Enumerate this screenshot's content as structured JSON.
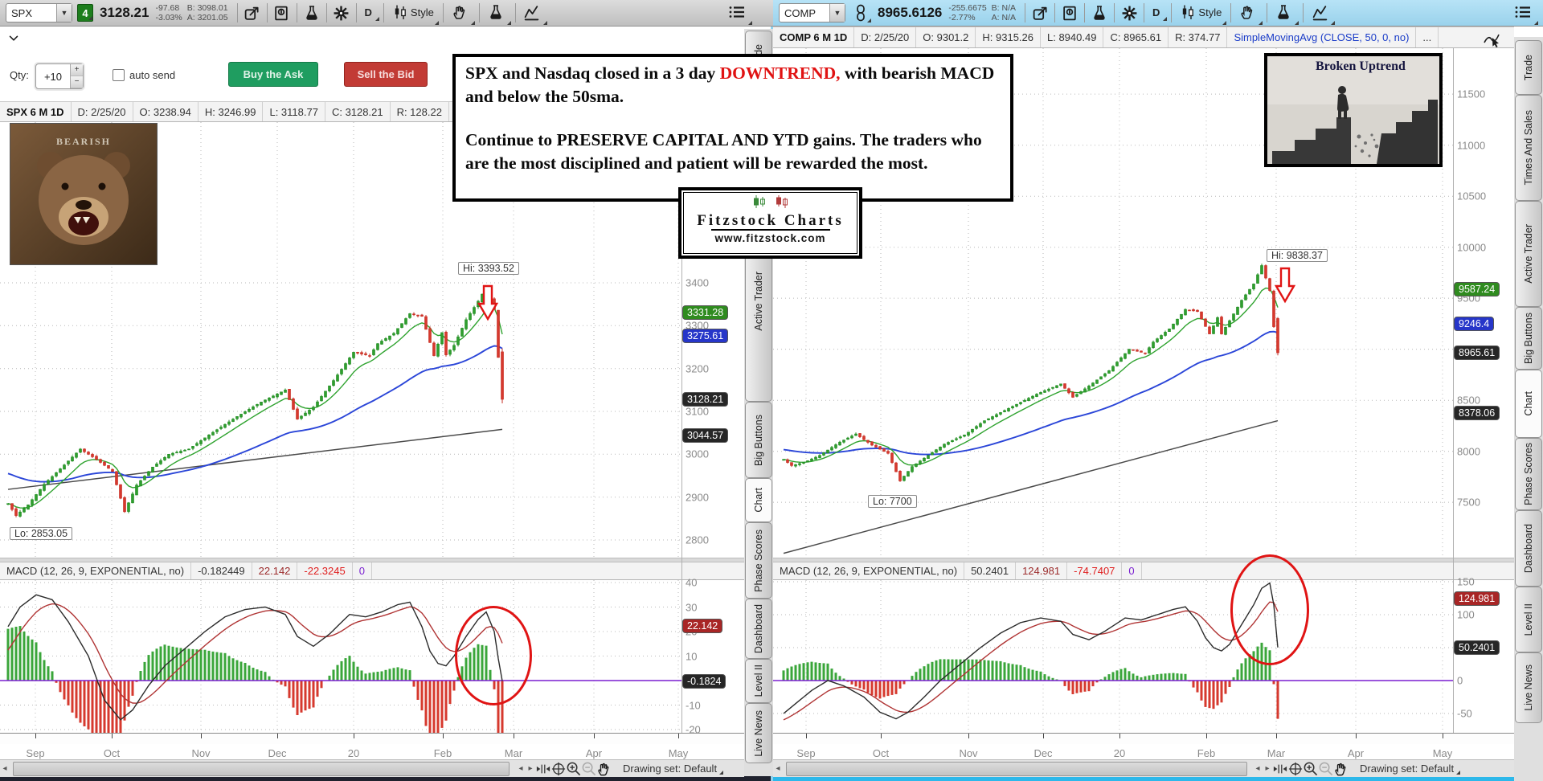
{
  "left_panel": {
    "toolbar": {
      "symbol": "SPX",
      "link_badge": "4",
      "last": "3128.21",
      "change": "-97.68",
      "change_pct": "-3.03%",
      "bid": "B: 3098.01",
      "ask": "A: 3201.05",
      "timeframe": "D",
      "style_label": "Style"
    },
    "toolbar_icons": [
      "share-icon",
      "news-icon",
      "flask-icon",
      "gear-icon"
    ],
    "toolbar_dropdown_icons": [
      "candle-style-icon",
      "hand-draw-icon",
      "flask-study-icon",
      "pattern-icon"
    ],
    "menu_icon": "menu-icon",
    "qty_row": {
      "label": "Qty:",
      "value": "+10",
      "auto_send_label": "auto send",
      "buy_label": "Buy the Ask",
      "sell_label": "Sell the Bid"
    },
    "drawing_set_label": "Drawing set: Default"
  },
  "right_panel": {
    "toolbar": {
      "symbol": "COMP",
      "last": "8965.6126",
      "change": "-255.6675",
      "change_pct": "-2.77%",
      "bid": "B: N/A",
      "ask": "A: N/A",
      "timeframe": "D",
      "style_label": "Style"
    },
    "study_label": "SimpleMovingAvg (CLOSE, 50, 0, no)",
    "study_color": "#1a3cc8",
    "ellipsis": "...",
    "drawing_set_label": "Drawing set: Default"
  },
  "tabs": [
    "Trade",
    "Times And Sales",
    "Active Trader",
    "Big Buttons",
    "Chart",
    "Phase Scores",
    "Dashboard",
    "Level II",
    "Live News"
  ],
  "active_tab": "Chart",
  "bottom_icons": [
    "prev-arrow-icon",
    "next-arrow-icon",
    "fit-width-icon",
    "crosshair-icon",
    "zoom-in-icon",
    "zoom-out-icon",
    "pan-hand-icon"
  ],
  "overlays": {
    "note": {
      "line1_pre": "SPX and Nasdaq closed in a 3 day ",
      "line1_red": "DOWNTREND,",
      "line1_post": " with bearish MACD and below the 50sma.",
      "line2": "Continue to PRESERVE CAPITAL AND YTD gains.  The traders who are the most disciplined and patient will be rewarded the most.",
      "red_color": "#e01212"
    },
    "logo": {
      "title": "Fitzstock Charts",
      "url": "www.fitzstock.com"
    },
    "broken_uptrend": {
      "title": "Broken Uptrend"
    },
    "bear": {
      "caption": "BEARISH"
    }
  },
  "chart_data": [
    {
      "type": "candlestick",
      "symbol": "SPX",
      "info_cells": [
        "SPX 6 M 1D",
        "D: 2/25/20",
        "O: 3238.94",
        "H: 3246.99",
        "L: 3118.77",
        "C: 3128.21",
        "R: 128.22"
      ],
      "hi_label": "Hi: 3393.52",
      "lo_label": "Lo: 2853.05",
      "x_labels": [
        "Sep",
        "Oct",
        "Nov",
        "Dec",
        "20",
        "Feb",
        "Mar",
        "Apr",
        "May"
      ],
      "y_ticks": [
        3400,
        3300,
        3200,
        3100,
        3000,
        2900,
        2800
      ],
      "y_grid": [
        3400,
        3300,
        3200,
        3100,
        3000,
        2900,
        2800
      ],
      "y_badges": [
        {
          "label": "3331.28",
          "value": 3331.28,
          "color": "#2f8b1f"
        },
        {
          "label": "3275.61",
          "value": 3275.61,
          "color": "#2636c9"
        },
        {
          "label": "3128.21",
          "value": 3128.21,
          "color": "#262626"
        },
        {
          "label": "3044.57",
          "value": 3044.57,
          "color": "#262626"
        }
      ],
      "price_waypoints": [
        [
          0,
          2885
        ],
        [
          2,
          2857
        ],
        [
          5,
          2882
        ],
        [
          9,
          2930
        ],
        [
          14,
          2975
        ],
        [
          18,
          3012
        ],
        [
          22,
          2988
        ],
        [
          26,
          2960
        ],
        [
          29,
          2866
        ],
        [
          32,
          2928
        ],
        [
          36,
          2970
        ],
        [
          40,
          3000
        ],
        [
          45,
          3012
        ],
        [
          50,
          3045
        ],
        [
          57,
          3088
        ],
        [
          63,
          3122
        ],
        [
          69,
          3150
        ],
        [
          72,
          3082
        ],
        [
          76,
          3110
        ],
        [
          81,
          3172
        ],
        [
          86,
          3238
        ],
        [
          90,
          3230
        ],
        [
          92,
          3258
        ],
        [
          96,
          3282
        ],
        [
          100,
          3328
        ],
        [
          103,
          3322
        ],
        [
          106,
          3230
        ],
        [
          108,
          3284
        ],
        [
          109,
          3232
        ],
        [
          111,
          3254
        ],
        [
          114,
          3314
        ],
        [
          117,
          3357
        ],
        [
          119,
          3390
        ],
        [
          121,
          3338
        ],
        [
          122,
          3226
        ],
        [
          123,
          3128
        ]
      ],
      "sma200_waypoints": [
        [
          0,
          2918
        ],
        [
          123,
          3058
        ]
      ],
      "overrides": {
        "2": {
          "l": 2853.05
        },
        "119": {
          "h": 3393.52
        },
        "123": {
          "o": 3238.94,
          "h": 3246.99,
          "l": 3118.77,
          "c": 3128.21
        }
      },
      "macd": {
        "cells": [
          {
            "text": "MACD (12, 26, 9, EXPONENTIAL, no)",
            "color": "#333333"
          },
          {
            "text": "-0.182449",
            "color": "#333333"
          },
          {
            "text": "22.142",
            "color": "#9c2b2b"
          },
          {
            "text": "-22.3245",
            "color": "#e02020"
          },
          {
            "text": "0",
            "color": "#7a1fd1"
          }
        ],
        "y_ticks": [
          40,
          30,
          20,
          10,
          -10,
          -20
        ],
        "y_grid": [
          40,
          30,
          20,
          10,
          -10,
          -20
        ],
        "y_badges": [
          {
            "label": "22.142",
            "value": 22.142,
            "color": "#a82626"
          },
          {
            "label": "-0.1824",
            "value": -0.1824,
            "color": "#262626"
          }
        ],
        "waypoints": [
          [
            0,
            22
          ],
          [
            3,
            30
          ],
          [
            7,
            35
          ],
          [
            11,
            33
          ],
          [
            15,
            24
          ],
          [
            20,
            10
          ],
          [
            24,
            -8
          ],
          [
            28,
            -16
          ],
          [
            31,
            -12
          ],
          [
            35,
            -2
          ],
          [
            39,
            6
          ],
          [
            44,
            13
          ],
          [
            49,
            20
          ],
          [
            54,
            26
          ],
          [
            59,
            29
          ],
          [
            64,
            30
          ],
          [
            69,
            27
          ],
          [
            72,
            18
          ],
          [
            76,
            14
          ],
          [
            80,
            19
          ],
          [
            85,
            27
          ],
          [
            89,
            26
          ],
          [
            93,
            28
          ],
          [
            97,
            31
          ],
          [
            100,
            32
          ],
          [
            103,
            22
          ],
          [
            105,
            12
          ],
          [
            107,
            7
          ],
          [
            109,
            6
          ],
          [
            111,
            10
          ],
          [
            114,
            18
          ],
          [
            117,
            25
          ],
          [
            119,
            28
          ],
          [
            121,
            20
          ],
          [
            122,
            9
          ],
          [
            123,
            -0.18
          ]
        ]
      }
    },
    {
      "type": "candlestick",
      "symbol": "COMP",
      "info_cells": [
        "COMP 6 M 1D",
        "D: 2/25/20",
        "O: 9301.2",
        "H: 9315.26",
        "L: 8940.49",
        "C: 8965.61",
        "R: 374.77"
      ],
      "hi_label": "Hi: 9838.37",
      "lo_label": "Lo: 7700",
      "x_labels": [
        "Sep",
        "Oct",
        "Nov",
        "Dec",
        "20",
        "Feb",
        "Mar",
        "Apr",
        "May"
      ],
      "y_ticks": [
        11500,
        11000,
        10500,
        10000,
        9500,
        8500,
        8000,
        7500
      ],
      "y_grid": [
        11500,
        11000,
        10500,
        10000,
        9500,
        9000,
        8500,
        8000,
        7500
      ],
      "y_badges": [
        {
          "label": "9587.24",
          "value": 9587.24,
          "color": "#2f8b1f"
        },
        {
          "label": "9246.4",
          "value": 9246.4,
          "color": "#2636c9"
        },
        {
          "label": "8965.61",
          "value": 8965.61,
          "color": "#262626"
        },
        {
          "label": "8378.06",
          "value": 8378.06,
          "color": "#262626"
        }
      ],
      "price_waypoints": [
        [
          0,
          7920
        ],
        [
          2,
          7860
        ],
        [
          5,
          7890
        ],
        [
          9,
          7960
        ],
        [
          14,
          8090
        ],
        [
          18,
          8170
        ],
        [
          22,
          8060
        ],
        [
          26,
          7980
        ],
        [
          29,
          7710
        ],
        [
          32,
          7850
        ],
        [
          36,
          7960
        ],
        [
          40,
          8070
        ],
        [
          45,
          8160
        ],
        [
          50,
          8300
        ],
        [
          57,
          8440
        ],
        [
          63,
          8560
        ],
        [
          69,
          8660
        ],
        [
          72,
          8530
        ],
        [
          76,
          8640
        ],
        [
          81,
          8790
        ],
        [
          86,
          9000
        ],
        [
          90,
          8960
        ],
        [
          92,
          9070
        ],
        [
          96,
          9200
        ],
        [
          100,
          9390
        ],
        [
          103,
          9370
        ],
        [
          106,
          9150
        ],
        [
          108,
          9310
        ],
        [
          109,
          9150
        ],
        [
          111,
          9280
        ],
        [
          114,
          9480
        ],
        [
          117,
          9640
        ],
        [
          119,
          9820
        ],
        [
          121,
          9576
        ],
        [
          122,
          9221
        ],
        [
          123,
          8965.61
        ]
      ],
      "sma200_waypoints": [
        [
          0,
          7000
        ],
        [
          123,
          8300
        ]
      ],
      "overrides": {
        "29": {
          "l": 7700
        },
        "119": {
          "h": 9838.37
        },
        "123": {
          "o": 9301.2,
          "h": 9315.26,
          "l": 8940.49,
          "c": 8965.61
        }
      },
      "macd": {
        "cells": [
          {
            "text": "MACD (12, 26, 9, EXPONENTIAL, no)",
            "color": "#333333"
          },
          {
            "text": "50.2401",
            "color": "#333333"
          },
          {
            "text": "124.981",
            "color": "#9c2b2b"
          },
          {
            "text": "-74.7407",
            "color": "#e02020"
          },
          {
            "text": "0",
            "color": "#7a1fd1"
          }
        ],
        "y_ticks": [
          150,
          100,
          0,
          -50
        ],
        "y_grid": [
          150,
          100,
          50,
          -50
        ],
        "y_badges": [
          {
            "label": "124.981",
            "value": 124.981,
            "color": "#a82626"
          },
          {
            "label": "50.2401",
            "value": 50.2401,
            "color": "#262626"
          }
        ],
        "waypoints": [
          [
            0,
            -50
          ],
          [
            3,
            -35
          ],
          [
            7,
            -15
          ],
          [
            11,
            0
          ],
          [
            15,
            -8
          ],
          [
            20,
            -25
          ],
          [
            24,
            -48
          ],
          [
            28,
            -58
          ],
          [
            31,
            -48
          ],
          [
            35,
            -25
          ],
          [
            39,
            0
          ],
          [
            44,
            25
          ],
          [
            49,
            50
          ],
          [
            54,
            72
          ],
          [
            59,
            88
          ],
          [
            64,
            95
          ],
          [
            69,
            90
          ],
          [
            72,
            70
          ],
          [
            76,
            62
          ],
          [
            80,
            75
          ],
          [
            85,
            95
          ],
          [
            89,
            92
          ],
          [
            93,
            100
          ],
          [
            97,
            108
          ],
          [
            100,
            112
          ],
          [
            103,
            90
          ],
          [
            105,
            65
          ],
          [
            107,
            50
          ],
          [
            109,
            45
          ],
          [
            111,
            55
          ],
          [
            114,
            85
          ],
          [
            117,
            115
          ],
          [
            119,
            140
          ],
          [
            121,
            148
          ],
          [
            122,
            115
          ],
          [
            123,
            50.24
          ]
        ]
      }
    }
  ]
}
